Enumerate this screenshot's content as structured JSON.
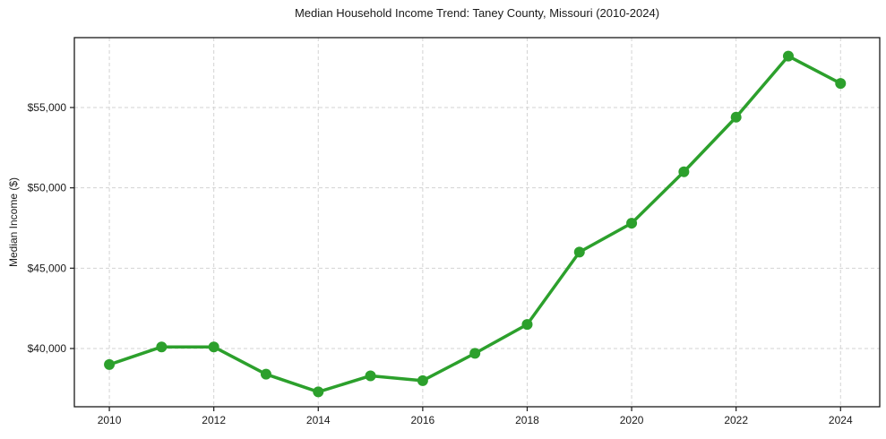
{
  "chart_data": {
    "type": "line",
    "title": "Median Household Income Trend: Taney County, Missouri (2010-2024)",
    "xlabel": "",
    "ylabel": "Median Income ($)",
    "x": [
      2010,
      2011,
      2012,
      2013,
      2014,
      2015,
      2016,
      2017,
      2018,
      2019,
      2020,
      2021,
      2022,
      2023,
      2024
    ],
    "series": [
      {
        "name": "Median Household Income",
        "values": [
          39000,
          40100,
          40100,
          38400,
          37300,
          38300,
          38000,
          39700,
          41500,
          46000,
          47800,
          51000,
          54400,
          58200,
          56500
        ]
      }
    ],
    "x_ticks": [
      2010,
      2012,
      2014,
      2016,
      2018,
      2020,
      2022,
      2024
    ],
    "x_tick_labels": [
      "2010",
      "2012",
      "2014",
      "2016",
      "2018",
      "2020",
      "2022",
      "2024"
    ],
    "y_ticks": [
      40000,
      45000,
      50000,
      55000
    ],
    "y_tick_labels": [
      "$40,000",
      "$45,000",
      "$50,000",
      "$55,000"
    ],
    "xlim": [
      2009.33,
      2024.75
    ],
    "ylim": [
      36375,
      59350
    ],
    "grid": true,
    "grid_style": "dashed",
    "legend_position": "none",
    "line_color": "#2ca02c",
    "marker": "circle",
    "marker_radius": 6,
    "grid_color": "#d3d3d3",
    "frame_color": "#1a1a1a",
    "text_color": "#1a1a1a",
    "background_color": "#ffffff"
  }
}
